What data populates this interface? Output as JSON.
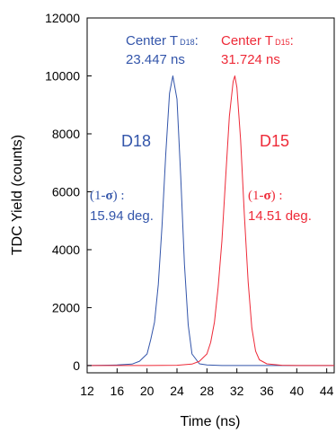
{
  "chart_data": {
    "type": "line",
    "xlabel": "Time (ns)",
    "ylabel": "TDC Yield (counts)",
    "xlim": [
      12,
      45
    ],
    "ylim": [
      -250,
      12000
    ],
    "xticks": [
      "12",
      "16",
      "20",
      "24",
      "28",
      "32",
      "36",
      "40",
      "44"
    ],
    "yticks": [
      "0",
      "2000",
      "4000",
      "6000",
      "8000",
      "10000",
      "12000"
    ],
    "colors": {
      "D18": "#3355aa",
      "D15": "#ee2a38"
    },
    "series": [
      {
        "name": "D18",
        "x": [
          12,
          14,
          16,
          18,
          19,
          20,
          20.5,
          21,
          21.5,
          22,
          22.5,
          23,
          23.447,
          24,
          24.5,
          25,
          25.5,
          26,
          27,
          28,
          30,
          32,
          36,
          40,
          45
        ],
        "values": [
          0,
          10,
          20,
          50,
          150,
          400,
          900,
          1500,
          2800,
          4800,
          7300,
          9400,
          10000,
          9200,
          6500,
          3500,
          1400,
          400,
          60,
          20,
          0,
          0,
          0,
          0,
          0
        ]
      },
      {
        "name": "D15",
        "x": [
          12,
          16,
          20,
          24,
          26,
          27,
          28,
          28.5,
          29,
          29.5,
          30,
          30.5,
          31,
          31.5,
          31.724,
          32,
          32.5,
          33,
          33.5,
          34,
          34.5,
          35,
          36,
          38,
          40,
          45
        ],
        "values": [
          0,
          0,
          0,
          10,
          50,
          150,
          400,
          800,
          1500,
          2700,
          4300,
          6500,
          8600,
          9800,
          10000,
          9600,
          7800,
          5200,
          2900,
          1300,
          500,
          200,
          60,
          10,
          0,
          0
        ]
      }
    ],
    "annotations": {
      "d18": {
        "center_label": "Center T",
        "center_sub": "D18",
        "center_colon": ":",
        "center_value": "23.447 ns",
        "series_label": "D18",
        "sigma_open": "(1-",
        "sigma_symbol": "σ",
        "sigma_close": ") :",
        "sigma_value": "15.94 deg."
      },
      "d15": {
        "center_label": "Center T",
        "center_sub": "D15",
        "center_colon": ":",
        "center_value": "31.724 ns",
        "series_label": "D15",
        "sigma_open": "(1-",
        "sigma_symbol": "σ",
        "sigma_close": ") :",
        "sigma_value": "14.51 deg."
      }
    }
  }
}
